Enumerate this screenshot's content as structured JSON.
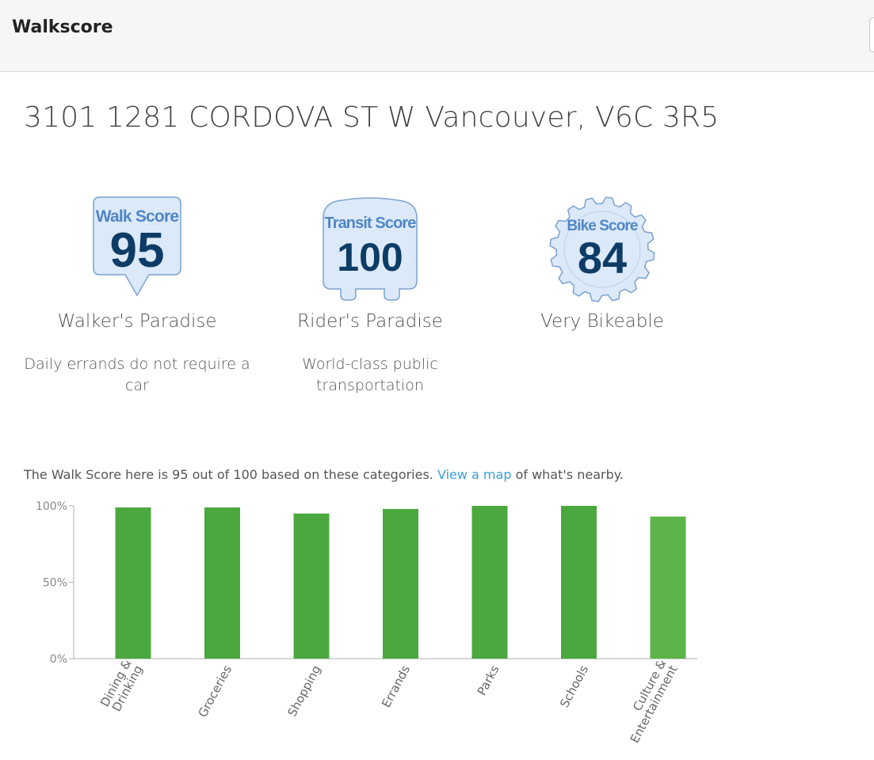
{
  "header": {
    "title": "Walkscore"
  },
  "address": "3101 1281 CORDOVA ST W Vancouver, V6C 3R5",
  "scores": [
    {
      "badge_label": "Walk Score",
      "value": "95",
      "rating": "Walker's Paradise",
      "description": "Daily errands do not require a car"
    },
    {
      "badge_label": "Transit Score",
      "value": "100",
      "rating": "Rider's Paradise",
      "description": "World-class public transportation"
    },
    {
      "badge_label": "Bike Score",
      "value": "84",
      "rating": "Very Bikeable",
      "description": ""
    }
  ],
  "colors": {
    "badge_fill": "#dce9f9",
    "badge_stroke": "#7ba2d0",
    "badge_label": "#4f86c6",
    "badge_value": "#0d3c66",
    "bar": "#4aa83f",
    "bar_light": "#5cb449",
    "link": "#3a9fd6"
  },
  "summary": {
    "before": "The Walk Score here is 95 out of 100 based on these categories. ",
    "link": "View a map",
    "after": " of what's nearby."
  },
  "chart_data": {
    "type": "bar",
    "categories": [
      "Dining & Drinking",
      "Groceries",
      "Shopping",
      "Errands",
      "Parks",
      "Schools",
      "Culture & Entertainment"
    ],
    "values": [
      99,
      99,
      95,
      98,
      100,
      100,
      93
    ],
    "yticks": [
      "100%",
      "50%",
      "0%"
    ],
    "ylim": [
      0,
      100
    ],
    "grid": false
  }
}
